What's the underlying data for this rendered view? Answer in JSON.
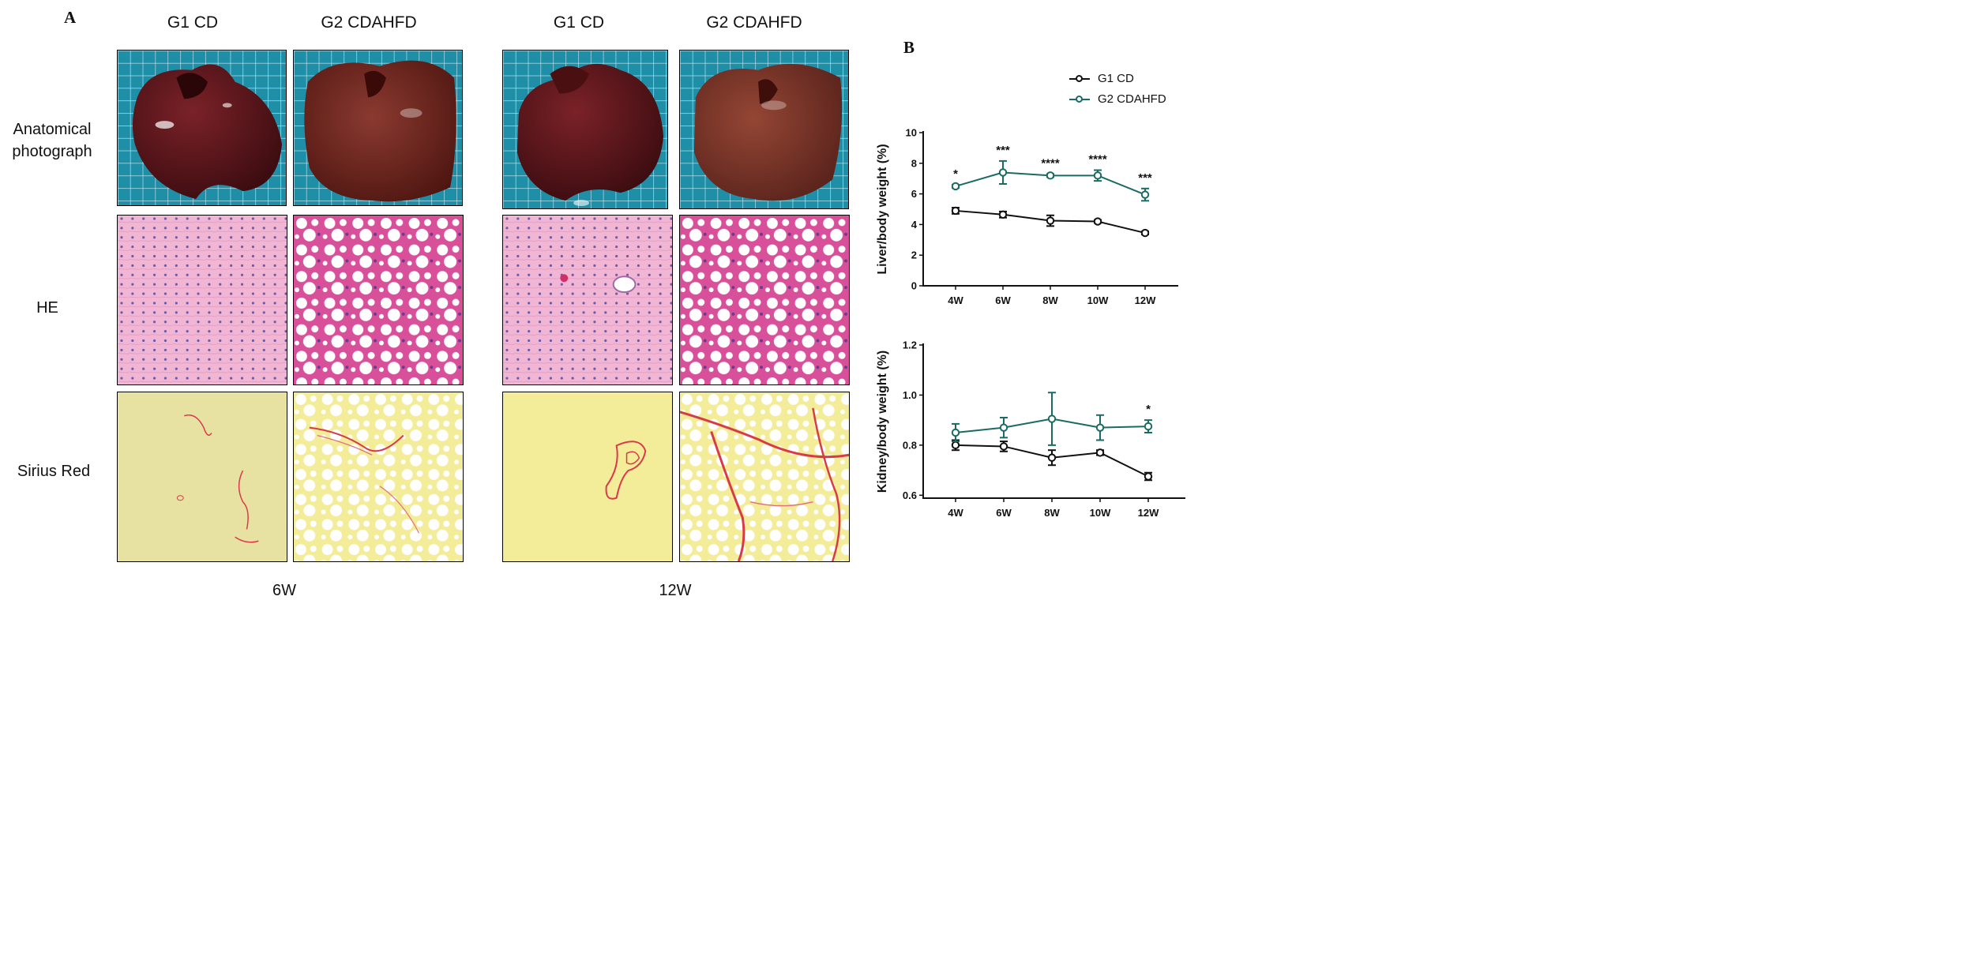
{
  "panel_a": {
    "label": "A",
    "columns": [
      "G1 CD",
      "G2 CDAHFD",
      "G1 CD",
      "G2 CDAHFD"
    ],
    "rows": [
      {
        "label_lines": [
          "Anatomical",
          "photograph"
        ]
      },
      {
        "label_lines": [
          "HE"
        ]
      },
      {
        "label_lines": [
          "Sirius Red"
        ]
      }
    ],
    "timepoints": [
      "6W",
      "12W"
    ],
    "colors": {
      "board_blue": "#1f8fa8",
      "liver_dark": "#5a1414",
      "liver_light": "#7a2a22",
      "he_cd_bg": "#f0b6d4",
      "he_hfd_bg": "#d9509a",
      "sirius_cd_bg": "#e8e2a2",
      "sirius_hfd_bg": "#f3ec98",
      "sirius_red": "#d83a4a"
    }
  },
  "panel_b": {
    "label": "B",
    "legend": [
      {
        "name": "G1 CD",
        "color": "#111111"
      },
      {
        "name": "G2 CDAHFD",
        "color": "#1a6b63"
      }
    ]
  },
  "chart_data": [
    {
      "type": "line",
      "ylabel": "Liver/body weight (%)",
      "xlabel": "",
      "categories": [
        "4W",
        "6W",
        "8W",
        "10W",
        "12W"
      ],
      "ylim": [
        0,
        10
      ],
      "yticks": [
        "0",
        "2",
        "4",
        "6",
        "8",
        "10"
      ],
      "series": [
        {
          "name": "G1 CD",
          "color": "#111111",
          "values": [
            4.9,
            4.65,
            4.25,
            4.2,
            3.45
          ],
          "errors": [
            0.2,
            0.2,
            0.35,
            0.1,
            0.1
          ]
        },
        {
          "name": "G2 CDAHFD",
          "color": "#1a6b63",
          "values": [
            6.5,
            7.4,
            7.2,
            7.2,
            5.95
          ],
          "errors": [
            0.1,
            0.75,
            0.1,
            0.35,
            0.4
          ]
        }
      ],
      "annotations": [
        "*",
        "***",
        "****",
        "****",
        "***"
      ]
    },
    {
      "type": "line",
      "ylabel": "Kidney/body weight (%)",
      "xlabel": "",
      "categories": [
        "4W",
        "6W",
        "8W",
        "10W",
        "12W"
      ],
      "ylim": [
        0.5,
        1.2
      ],
      "yticks": [
        "0.6",
        "0.8",
        "1.0",
        "1.2"
      ],
      "series": [
        {
          "name": "G1 CD",
          "color": "#111111",
          "values": [
            0.8,
            0.795,
            0.75,
            0.77,
            0.675
          ],
          "errors": [
            0.02,
            0.02,
            0.03,
            0.01,
            0.015
          ]
        },
        {
          "name": "G2 CDAHFD",
          "color": "#1a6b63",
          "values": [
            0.85,
            0.87,
            0.905,
            0.87,
            0.875
          ],
          "errors": [
            0.035,
            0.04,
            0.105,
            0.05,
            0.025
          ]
        }
      ],
      "annotations": [
        "",
        "",
        "",
        "",
        "*"
      ]
    }
  ]
}
